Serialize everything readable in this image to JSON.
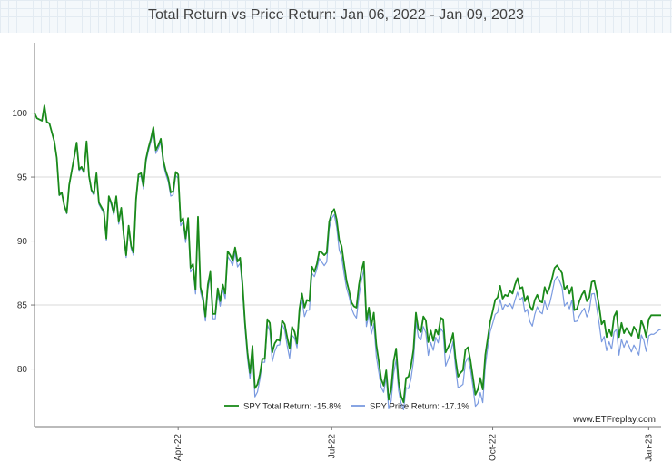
{
  "chart_data": {
    "type": "line",
    "title": "Total Return vs Price Return: Jan 06, 2022 - Jan 09, 2023",
    "xlabel": "",
    "ylabel": "",
    "ylim": [
      75.5,
      105.5
    ],
    "y_ticks": [
      80,
      85,
      90,
      95,
      100
    ],
    "x_domain": [
      0,
      253
    ],
    "x_ticks": [
      {
        "label": "Apr-22",
        "x": 58
      },
      {
        "label": "Jul-22",
        "x": 120
      },
      {
        "label": "Oct-22",
        "x": 185
      },
      {
        "label": "Jan-23",
        "x": 248
      }
    ],
    "grid": true,
    "legend_position": "bottom-center",
    "source_credit": "www.ETFreplay.com",
    "series": [
      {
        "name": "SPY Total Return: -15.8%",
        "color": "#1a8a1a",
        "keypoints": [
          [
            0,
            100
          ],
          [
            1,
            99.6
          ],
          [
            3,
            99.4
          ],
          [
            4,
            100.6
          ],
          [
            5,
            99.3
          ],
          [
            6,
            99.2
          ],
          [
            8,
            97.8
          ],
          [
            9,
            96.5
          ],
          [
            10,
            93.6
          ],
          [
            11,
            93.8
          ],
          [
            12,
            92.8
          ],
          [
            13,
            92.2
          ],
          [
            14,
            94.4
          ],
          [
            16,
            96.5
          ],
          [
            17,
            97.7
          ],
          [
            18,
            95.6
          ],
          [
            19,
            95.8
          ],
          [
            20,
            95.4
          ],
          [
            21,
            97.8
          ],
          [
            22,
            95.1
          ],
          [
            23,
            94
          ],
          [
            24,
            93.7
          ],
          [
            25,
            95.3
          ],
          [
            26,
            93
          ],
          [
            28,
            92.3
          ],
          [
            29,
            90.2
          ],
          [
            30,
            93.5
          ],
          [
            31,
            93
          ],
          [
            32,
            92.2
          ],
          [
            33,
            93.5
          ],
          [
            34,
            91.5
          ],
          [
            35,
            92.6
          ],
          [
            36,
            90.5
          ],
          [
            37,
            88.9
          ],
          [
            38,
            91.2
          ],
          [
            39,
            89.6
          ],
          [
            40,
            89.1
          ],
          [
            41,
            93.3
          ],
          [
            42,
            95.2
          ],
          [
            43,
            95.3
          ],
          [
            44,
            94.3
          ],
          [
            45,
            96.4
          ],
          [
            46,
            97.3
          ],
          [
            47,
            98
          ],
          [
            48,
            98.9
          ],
          [
            49,
            97.1
          ],
          [
            50,
            97.5
          ],
          [
            51,
            98
          ],
          [
            52,
            96.3
          ],
          [
            53,
            95.5
          ],
          [
            54,
            94.9
          ],
          [
            55,
            93.8
          ],
          [
            56,
            93.9
          ],
          [
            57,
            95.4
          ],
          [
            58,
            95.2
          ],
          [
            59,
            91.5
          ],
          [
            60,
            91.8
          ],
          [
            61,
            90.2
          ],
          [
            62,
            91.8
          ],
          [
            63,
            87.9
          ],
          [
            64,
            88.2
          ],
          [
            65,
            86.2
          ],
          [
            66,
            91.9
          ],
          [
            67,
            86.4
          ],
          [
            68,
            85.6
          ],
          [
            69,
            84.1
          ],
          [
            70,
            86.6
          ],
          [
            71,
            87.6
          ],
          [
            72,
            84.3
          ],
          [
            73,
            84.3
          ],
          [
            74,
            86.3
          ],
          [
            75,
            85.3
          ],
          [
            76,
            86.6
          ],
          [
            77,
            85.9
          ],
          [
            78,
            89.2
          ],
          [
            79,
            88.9
          ],
          [
            80,
            88.5
          ],
          [
            81,
            89.5
          ],
          [
            82,
            88.4
          ],
          [
            83,
            88.7
          ],
          [
            84,
            86.6
          ],
          [
            85,
            83.6
          ],
          [
            86,
            81.3
          ],
          [
            87,
            79.7
          ],
          [
            88,
            81.8
          ],
          [
            89,
            78.5
          ],
          [
            90,
            78.8
          ],
          [
            91,
            79.6
          ],
          [
            92,
            80.8
          ],
          [
            93,
            80.8
          ],
          [
            94,
            83.9
          ],
          [
            95,
            83.6
          ],
          [
            96,
            81.3
          ],
          [
            97,
            82
          ],
          [
            98,
            82.3
          ],
          [
            99,
            82.2
          ],
          [
            100,
            83.8
          ],
          [
            101,
            83.5
          ],
          [
            102,
            82.5
          ],
          [
            103,
            81.6
          ],
          [
            104,
            83.3
          ],
          [
            105,
            82.9
          ],
          [
            106,
            82
          ],
          [
            107,
            84.7
          ],
          [
            108,
            85.9
          ],
          [
            109,
            84.8
          ],
          [
            110,
            85.4
          ],
          [
            111,
            85.3
          ],
          [
            112,
            88
          ],
          [
            113,
            87.6
          ],
          [
            114,
            88.2
          ],
          [
            115,
            89.2
          ],
          [
            116,
            89.1
          ],
          [
            117,
            88.9
          ],
          [
            118,
            89.1
          ],
          [
            119,
            91.5
          ],
          [
            120,
            92.2
          ],
          [
            121,
            92.5
          ],
          [
            122,
            91.7
          ],
          [
            123,
            90.1
          ],
          [
            124,
            89.6
          ],
          [
            125,
            88.2
          ],
          [
            126,
            86.9
          ],
          [
            127,
            86.1
          ],
          [
            128,
            85.2
          ],
          [
            129,
            84.9
          ],
          [
            130,
            84.8
          ],
          [
            131,
            86.6
          ],
          [
            132,
            87.7
          ],
          [
            133,
            88.4
          ],
          [
            134,
            83.8
          ],
          [
            135,
            84.8
          ],
          [
            136,
            83.4
          ],
          [
            137,
            84.4
          ],
          [
            138,
            81.9
          ],
          [
            139,
            80.6
          ],
          [
            140,
            79.2
          ],
          [
            141,
            78.7
          ],
          [
            142,
            79.9
          ],
          [
            143,
            77.6
          ],
          [
            144,
            78.4
          ],
          [
            145,
            80.6
          ],
          [
            146,
            81.6
          ],
          [
            147,
            79
          ],
          [
            148,
            77.9
          ],
          [
            149,
            77.4
          ],
          [
            150,
            79.3
          ],
          [
            151,
            79.4
          ],
          [
            152,
            80.2
          ],
          [
            153,
            81.5
          ],
          [
            154,
            84.4
          ],
          [
            155,
            83.1
          ],
          [
            156,
            82.9
          ],
          [
            157,
            84.1
          ],
          [
            158,
            83.8
          ],
          [
            159,
            82.1
          ],
          [
            160,
            83
          ],
          [
            161,
            82.2
          ],
          [
            162,
            83.1
          ],
          [
            163,
            82.7
          ],
          [
            164,
            84
          ],
          [
            165,
            83.9
          ],
          [
            166,
            81.3
          ],
          [
            167,
            81.7
          ],
          [
            168,
            82.1
          ],
          [
            169,
            82.8
          ],
          [
            170,
            80.8
          ],
          [
            171,
            79.4
          ],
          [
            172,
            79.7
          ],
          [
            173,
            79.9
          ],
          [
            174,
            81.5
          ],
          [
            175,
            81.7
          ],
          [
            176,
            80.7
          ],
          [
            177,
            79.4
          ],
          [
            178,
            78
          ],
          [
            179,
            78.4
          ],
          [
            180,
            79.3
          ],
          [
            181,
            78.4
          ],
          [
            182,
            81.1
          ],
          [
            183,
            82.4
          ],
          [
            184,
            83.7
          ],
          [
            185,
            84.5
          ],
          [
            186,
            85.4
          ],
          [
            187,
            85.6
          ],
          [
            188,
            86.5
          ],
          [
            189,
            85.5
          ],
          [
            190,
            85.8
          ],
          [
            191,
            85.7
          ],
          [
            192,
            86.1
          ],
          [
            193,
            85.9
          ],
          [
            194,
            86.6
          ],
          [
            195,
            87.1
          ],
          [
            196,
            86.3
          ],
          [
            197,
            86.4
          ],
          [
            198,
            85.3
          ],
          [
            199,
            85.7
          ],
          [
            200,
            84.9
          ],
          [
            201,
            84.6
          ],
          [
            202,
            85.4
          ],
          [
            203,
            85.8
          ],
          [
            204,
            85.3
          ],
          [
            205,
            85.2
          ],
          [
            206,
            86.4
          ],
          [
            207,
            85.9
          ],
          [
            208,
            86.4
          ],
          [
            209,
            87.1
          ],
          [
            210,
            87.9
          ],
          [
            211,
            88.1
          ],
          [
            212,
            87.8
          ],
          [
            213,
            87.5
          ],
          [
            214,
            86.2
          ],
          [
            215,
            86.5
          ],
          [
            216,
            85.9
          ],
          [
            217,
            86.4
          ],
          [
            218,
            84.6
          ],
          [
            219,
            84.7
          ],
          [
            220,
            85.3
          ],
          [
            221,
            85.8
          ],
          [
            222,
            86.1
          ],
          [
            223,
            85.3
          ],
          [
            224,
            85.6
          ],
          [
            225,
            86.8
          ],
          [
            226,
            86.9
          ],
          [
            227,
            86
          ],
          [
            228,
            84.9
          ],
          [
            229,
            83.5
          ],
          [
            230,
            83.8
          ],
          [
            231,
            82.5
          ],
          [
            232,
            83.1
          ],
          [
            233,
            82.6
          ],
          [
            234,
            84.1
          ],
          [
            235,
            84.5
          ],
          [
            236,
            82.5
          ],
          [
            237,
            83.6
          ],
          [
            238,
            82.8
          ],
          [
            239,
            83.2
          ],
          [
            240,
            82.9
          ],
          [
            241,
            82.6
          ],
          [
            242,
            83.3
          ],
          [
            243,
            83
          ],
          [
            244,
            82.4
          ],
          [
            245,
            83.8
          ],
          [
            246,
            83.3
          ],
          [
            247,
            82.5
          ],
          [
            248,
            83.9
          ],
          [
            249,
            84.2
          ],
          [
            250,
            84.2
          ],
          [
            251,
            84.2
          ],
          [
            252,
            84.2
          ],
          [
            253,
            84.2
          ]
        ]
      },
      {
        "name": "SPY Price Return: -17.1%",
        "color": "#7b9be0",
        "offset_start": 0,
        "offset_end": -1.3,
        "note": "price-return series tracks total return minus accumulated dividends"
      }
    ]
  }
}
